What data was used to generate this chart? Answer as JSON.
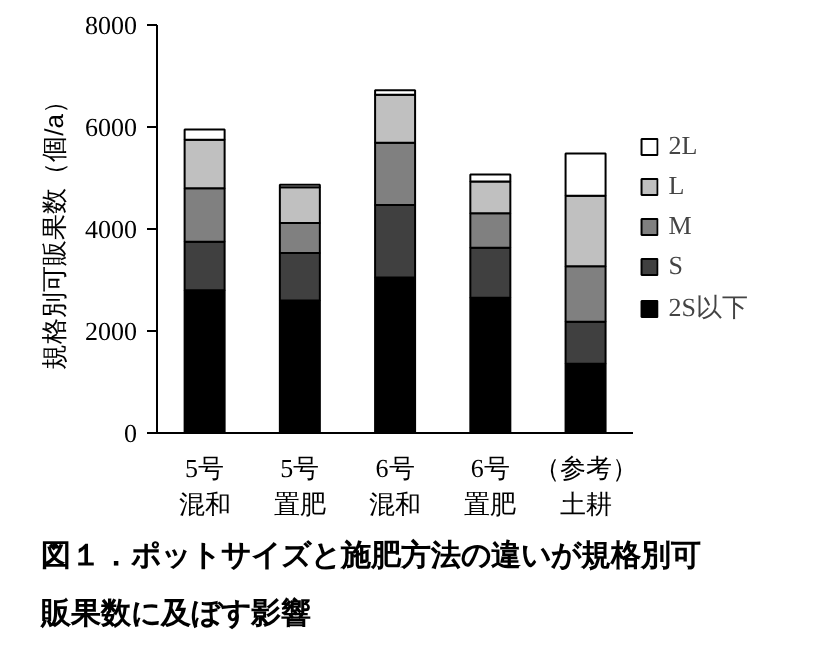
{
  "chart_data": {
    "type": "bar",
    "stacked": true,
    "title": "図１．ポットサイズと施肥方法の違いが規格別可販果数に及ぼす影響",
    "categories": [
      "5号混和",
      "5号置肥",
      "6号混和",
      "6号置肥",
      "（参考）土耕"
    ],
    "ylabel": "規格別可販果数（個/a）",
    "ylim": [
      0,
      8000
    ],
    "yticks": [
      0,
      2000,
      4000,
      6000,
      8000
    ],
    "grid": false,
    "legend": "right",
    "series": [
      {
        "name": "2S以下",
        "color": "#000000",
        "values": [
          2800,
          2600,
          3050,
          2650,
          1360
        ]
      },
      {
        "name": "S",
        "color": "#404040",
        "values": [
          950,
          930,
          1420,
          980,
          820
        ]
      },
      {
        "name": "M",
        "color": "#808080",
        "values": [
          1050,
          590,
          1220,
          680,
          1090
        ]
      },
      {
        "name": "L",
        "color": "#c0c0c0",
        "values": [
          950,
          700,
          940,
          620,
          1380
        ]
      },
      {
        "name": "2L",
        "color": "#ffffff",
        "values": [
          200,
          50,
          90,
          140,
          830
        ]
      }
    ]
  }
}
